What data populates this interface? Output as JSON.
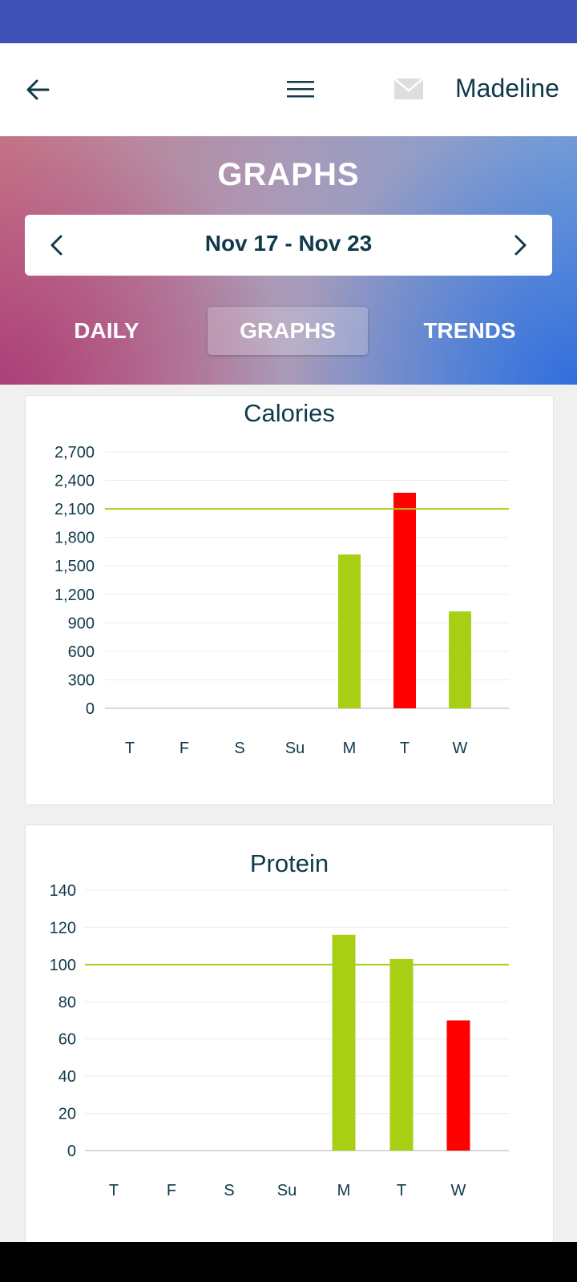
{
  "header": {
    "user_name": "Madeline",
    "icons": {
      "back": "arrow-left-icon",
      "menu": "hamburger-menu-icon",
      "mail": "envelope-icon"
    }
  },
  "hero": {
    "title": "GRAPHS",
    "date_range": "Nov 17 -  Nov 23",
    "tabs": [
      {
        "label": "DAILY",
        "active": false
      },
      {
        "label": "GRAPHS",
        "active": true
      },
      {
        "label": "TRENDS",
        "active": false
      }
    ]
  },
  "colors": {
    "status_bar": "#3f51b5",
    "under_goal": "#a8cf14",
    "over_goal": "#ff0000",
    "goal_line": "#a8cf14",
    "text": "#0f3a4a"
  },
  "chart_data": [
    {
      "type": "bar",
      "title": "Calories",
      "categories": [
        "T",
        "F",
        "S",
        "Su",
        "M",
        "T",
        "W"
      ],
      "values": [
        0,
        0,
        0,
        0,
        1620,
        2270,
        1020
      ],
      "bar_colors": [
        "#a8cf14",
        "#a8cf14",
        "#a8cf14",
        "#a8cf14",
        "#a8cf14",
        "#ff0000",
        "#a8cf14"
      ],
      "goal": 2100,
      "yticks": [
        "0",
        "300",
        "600",
        "900",
        "1,200",
        "1,500",
        "1,800",
        "2,100",
        "2,400",
        "2,700"
      ],
      "ylim": [
        0,
        2700
      ],
      "grid": true,
      "xlabel": "",
      "ylabel": ""
    },
    {
      "type": "bar",
      "title": "Protein",
      "categories": [
        "T",
        "F",
        "S",
        "Su",
        "M",
        "T",
        "W"
      ],
      "values": [
        0,
        0,
        0,
        0,
        116,
        103,
        70
      ],
      "bar_colors": [
        "#a8cf14",
        "#a8cf14",
        "#a8cf14",
        "#a8cf14",
        "#a8cf14",
        "#a8cf14",
        "#ff0000"
      ],
      "goal": 100,
      "yticks": [
        "0",
        "20",
        "40",
        "60",
        "80",
        "100",
        "120",
        "140"
      ],
      "ylim": [
        0,
        140
      ],
      "grid": true,
      "xlabel": "",
      "ylabel": ""
    }
  ]
}
